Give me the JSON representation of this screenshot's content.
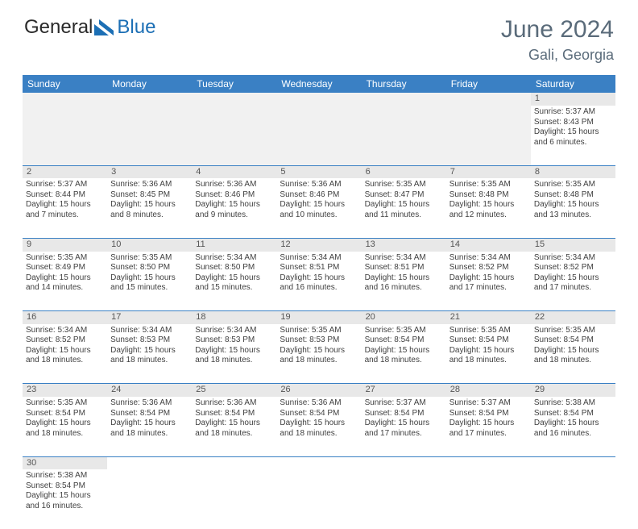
{
  "logo": {
    "text_left": "General",
    "text_right": "Blue",
    "color_text": "#2a2a2a",
    "color_blue": "#1c6fb5"
  },
  "title": "June 2024",
  "location": "Gali, Georgia",
  "header_bg": "#3a80c4",
  "weekdays": [
    "Sunday",
    "Monday",
    "Tuesday",
    "Wednesday",
    "Thursday",
    "Friday",
    "Saturday"
  ],
  "weeks": [
    [
      null,
      null,
      null,
      null,
      null,
      null,
      {
        "d": "1",
        "sr": "5:37 AM",
        "ss": "8:43 PM",
        "dl": "15 hours and 6 minutes."
      }
    ],
    [
      {
        "d": "2",
        "sr": "5:37 AM",
        "ss": "8:44 PM",
        "dl": "15 hours and 7 minutes."
      },
      {
        "d": "3",
        "sr": "5:36 AM",
        "ss": "8:45 PM",
        "dl": "15 hours and 8 minutes."
      },
      {
        "d": "4",
        "sr": "5:36 AM",
        "ss": "8:46 PM",
        "dl": "15 hours and 9 minutes."
      },
      {
        "d": "5",
        "sr": "5:36 AM",
        "ss": "8:46 PM",
        "dl": "15 hours and 10 minutes."
      },
      {
        "d": "6",
        "sr": "5:35 AM",
        "ss": "8:47 PM",
        "dl": "15 hours and 11 minutes."
      },
      {
        "d": "7",
        "sr": "5:35 AM",
        "ss": "8:48 PM",
        "dl": "15 hours and 12 minutes."
      },
      {
        "d": "8",
        "sr": "5:35 AM",
        "ss": "8:48 PM",
        "dl": "15 hours and 13 minutes."
      }
    ],
    [
      {
        "d": "9",
        "sr": "5:35 AM",
        "ss": "8:49 PM",
        "dl": "15 hours and 14 minutes."
      },
      {
        "d": "10",
        "sr": "5:35 AM",
        "ss": "8:50 PM",
        "dl": "15 hours and 15 minutes."
      },
      {
        "d": "11",
        "sr": "5:34 AM",
        "ss": "8:50 PM",
        "dl": "15 hours and 15 minutes."
      },
      {
        "d": "12",
        "sr": "5:34 AM",
        "ss": "8:51 PM",
        "dl": "15 hours and 16 minutes."
      },
      {
        "d": "13",
        "sr": "5:34 AM",
        "ss": "8:51 PM",
        "dl": "15 hours and 16 minutes."
      },
      {
        "d": "14",
        "sr": "5:34 AM",
        "ss": "8:52 PM",
        "dl": "15 hours and 17 minutes."
      },
      {
        "d": "15",
        "sr": "5:34 AM",
        "ss": "8:52 PM",
        "dl": "15 hours and 17 minutes."
      }
    ],
    [
      {
        "d": "16",
        "sr": "5:34 AM",
        "ss": "8:52 PM",
        "dl": "15 hours and 18 minutes."
      },
      {
        "d": "17",
        "sr": "5:34 AM",
        "ss": "8:53 PM",
        "dl": "15 hours and 18 minutes."
      },
      {
        "d": "18",
        "sr": "5:34 AM",
        "ss": "8:53 PM",
        "dl": "15 hours and 18 minutes."
      },
      {
        "d": "19",
        "sr": "5:35 AM",
        "ss": "8:53 PM",
        "dl": "15 hours and 18 minutes."
      },
      {
        "d": "20",
        "sr": "5:35 AM",
        "ss": "8:54 PM",
        "dl": "15 hours and 18 minutes."
      },
      {
        "d": "21",
        "sr": "5:35 AM",
        "ss": "8:54 PM",
        "dl": "15 hours and 18 minutes."
      },
      {
        "d": "22",
        "sr": "5:35 AM",
        "ss": "8:54 PM",
        "dl": "15 hours and 18 minutes."
      }
    ],
    [
      {
        "d": "23",
        "sr": "5:35 AM",
        "ss": "8:54 PM",
        "dl": "15 hours and 18 minutes."
      },
      {
        "d": "24",
        "sr": "5:36 AM",
        "ss": "8:54 PM",
        "dl": "15 hours and 18 minutes."
      },
      {
        "d": "25",
        "sr": "5:36 AM",
        "ss": "8:54 PM",
        "dl": "15 hours and 18 minutes."
      },
      {
        "d": "26",
        "sr": "5:36 AM",
        "ss": "8:54 PM",
        "dl": "15 hours and 18 minutes."
      },
      {
        "d": "27",
        "sr": "5:37 AM",
        "ss": "8:54 PM",
        "dl": "15 hours and 17 minutes."
      },
      {
        "d": "28",
        "sr": "5:37 AM",
        "ss": "8:54 PM",
        "dl": "15 hours and 17 minutes."
      },
      {
        "d": "29",
        "sr": "5:38 AM",
        "ss": "8:54 PM",
        "dl": "15 hours and 16 minutes."
      }
    ],
    [
      {
        "d": "30",
        "sr": "5:38 AM",
        "ss": "8:54 PM",
        "dl": "15 hours and 16 minutes."
      },
      null,
      null,
      null,
      null,
      null,
      null
    ]
  ],
  "labels": {
    "sunrise": "Sunrise:",
    "sunset": "Sunset:",
    "daylight": "Daylight:"
  }
}
